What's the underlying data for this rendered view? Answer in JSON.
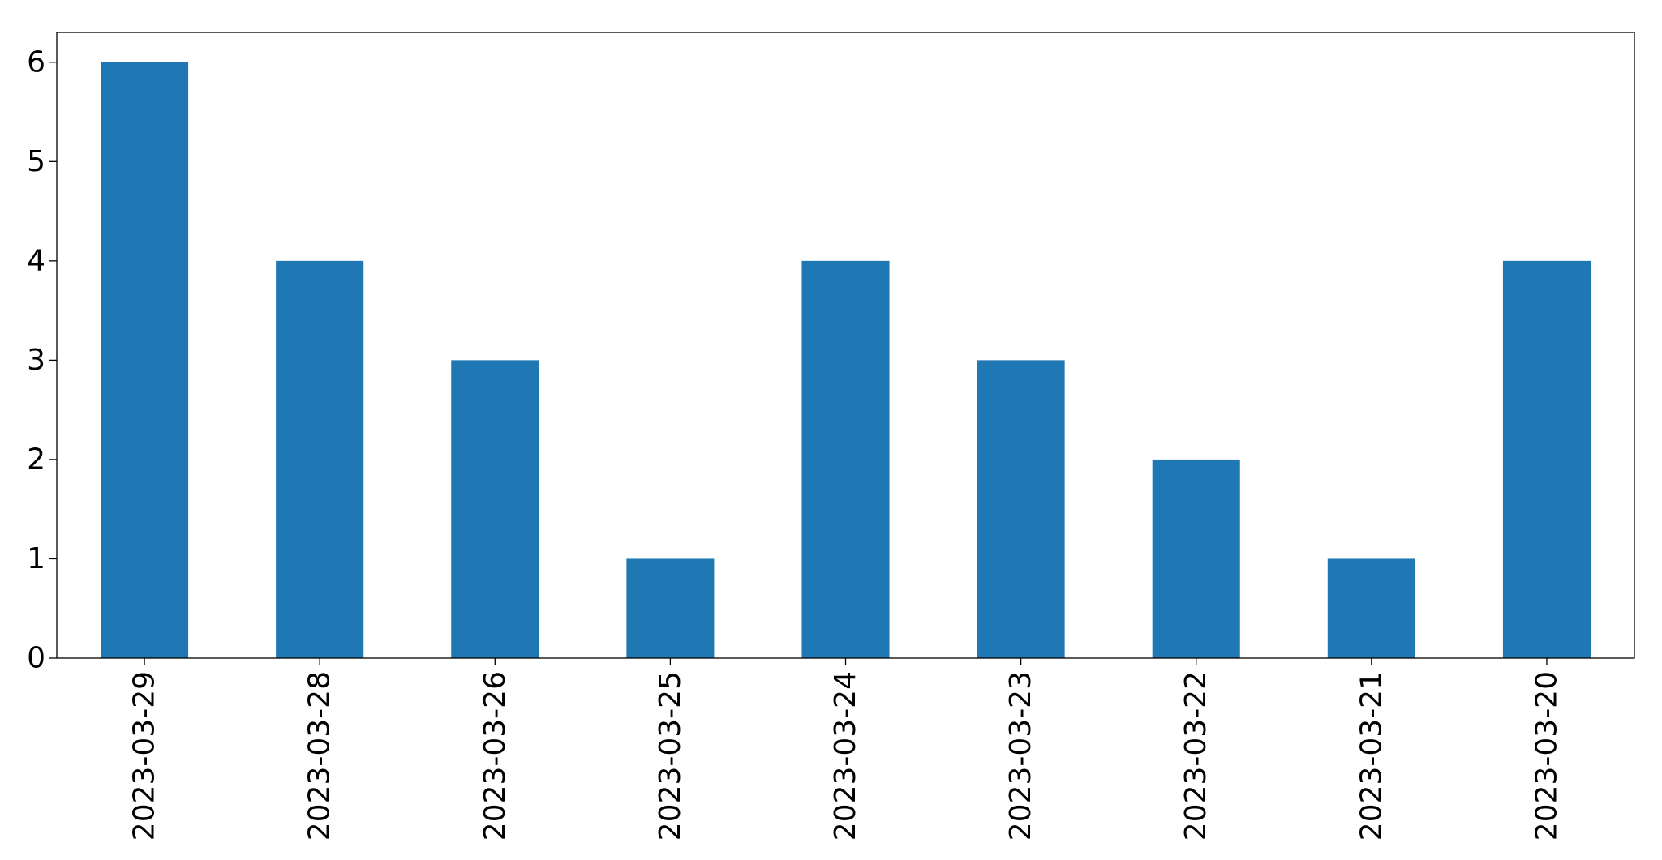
{
  "chart_data": {
    "type": "bar",
    "title": "",
    "xlabel": "",
    "ylabel": "",
    "categories": [
      "2023-03-29",
      "2023-03-28",
      "2023-03-26",
      "2023-03-25",
      "2023-03-24",
      "2023-03-23",
      "2023-03-22",
      "2023-03-21",
      "2023-03-20"
    ],
    "values": [
      6,
      4,
      3,
      1,
      4,
      3,
      2,
      1,
      4
    ],
    "ylim": [
      0,
      6.3
    ],
    "yticks": [
      0,
      1,
      2,
      3,
      4,
      5,
      6
    ],
    "x_tick_rotation_degrees": 90,
    "grid": false,
    "legend": "none",
    "bar_color": "#1f77b4"
  }
}
